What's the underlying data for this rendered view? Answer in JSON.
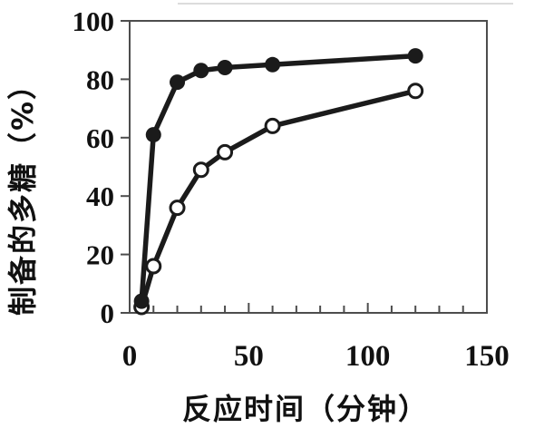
{
  "chart_data": {
    "type": "line",
    "title": "",
    "xlabel": "反应时间（分钟）",
    "ylabel": "制备的多糖（%）",
    "xlim": [
      0,
      150
    ],
    "ylim": [
      0,
      100
    ],
    "x_major_ticks": [
      0,
      50,
      100,
      150
    ],
    "x_minor_tick_step": 10,
    "y_ticks": [
      0,
      20,
      40,
      60,
      80,
      100
    ],
    "grid": "off",
    "legend": "none",
    "series": [
      {
        "name": "filled-circle-series",
        "marker": "filled-circle",
        "color": "#1b1b1b",
        "x": [
          5,
          10,
          20,
          30,
          40,
          60,
          120
        ],
        "y": [
          4,
          61,
          79,
          83,
          84,
          85,
          88
        ]
      },
      {
        "name": "open-circle-series",
        "marker": "open-circle",
        "color": "#1b1b1b",
        "x": [
          5,
          10,
          20,
          30,
          40,
          60,
          120
        ],
        "y": [
          2,
          16,
          36,
          49,
          55,
          64,
          76
        ]
      }
    ]
  },
  "colors": {
    "series_line": "#1b1b1b",
    "axis_frame": "#4d4d4d",
    "tick": "#4d4d4d",
    "text": "#111111",
    "background": "#ffffff",
    "open_marker_fill": "#ffffff"
  }
}
